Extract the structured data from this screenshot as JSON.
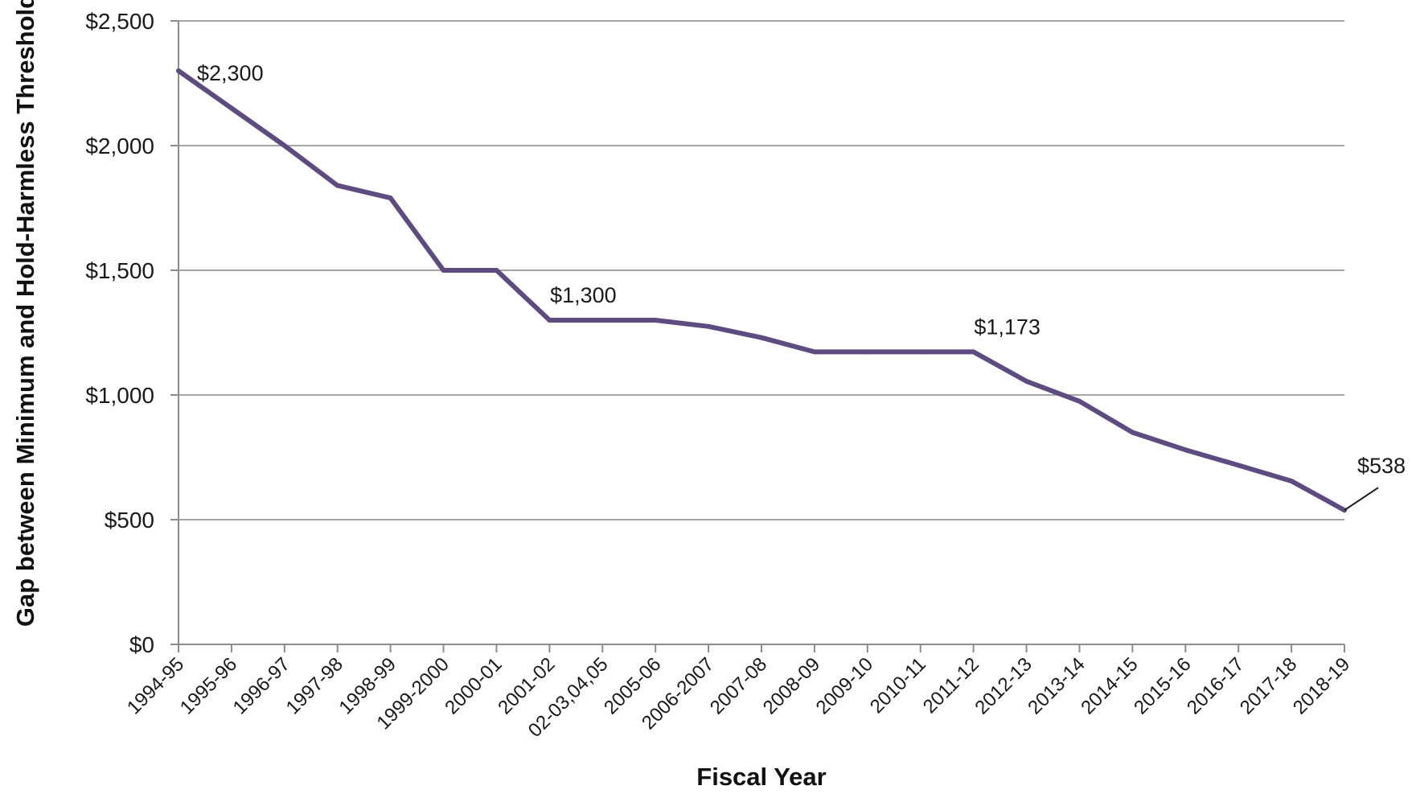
{
  "chart_data": {
    "type": "line",
    "title": "",
    "xlabel": "Fiscal Year",
    "ylabel": "Gap between Minimum and Hold-Harmless Threshold",
    "ylim": [
      0,
      2500
    ],
    "yticks": [
      0,
      500,
      1000,
      1500,
      2000,
      2500
    ],
    "ytick_labels": [
      "$0",
      "$500",
      "$1,000",
      "$1,500",
      "$2,000",
      "$2,500"
    ],
    "grid": true,
    "legend": "none",
    "line_color": "#5e4b80",
    "categories": [
      "1994-95",
      "1995-96",
      "1996-97",
      "1997-98",
      "1998-99",
      "1999-2000",
      "2000-01",
      "2001-02",
      "02-03,04,05",
      "2005-06",
      "2006-2007",
      "2007-08",
      "2008-09",
      "2009-10",
      "2010-11",
      "2011-12",
      "2012-13",
      "2013-14",
      "2014-15",
      "2015-16",
      "2016-17",
      "2017-18",
      "2018-19"
    ],
    "series": [
      {
        "values": [
          2300,
          2150,
          2000,
          1840,
          1790,
          1500,
          1500,
          1300,
          1300,
          1300,
          1275,
          1230,
          1173,
          1173,
          1173,
          1173,
          1055,
          975,
          850,
          780,
          718,
          655,
          538
        ]
      }
    ],
    "annotations": [
      {
        "index": 0,
        "text": "$2,300"
      },
      {
        "index": 7,
        "text": "$1,300"
      },
      {
        "index": 15,
        "text": "$1,173"
      },
      {
        "index": 22,
        "text": "$538"
      }
    ]
  }
}
